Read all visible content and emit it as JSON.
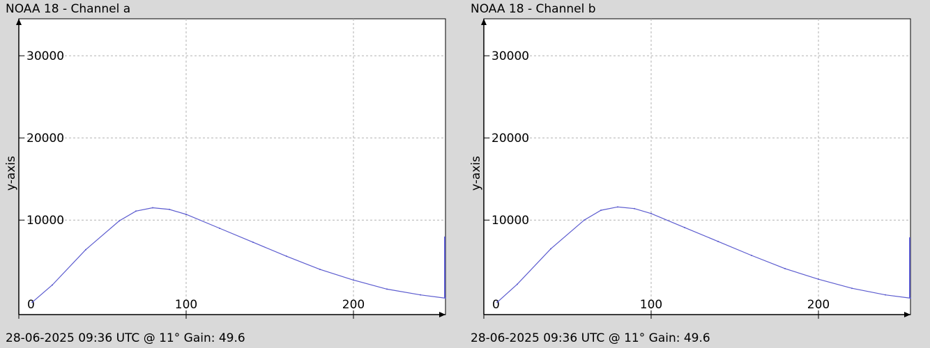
{
  "chart_data": [
    {
      "type": "line",
      "title": "NOAA 18 - Channel a",
      "footer": "28-06-2025 09:36 UTC @ 11° Gain: 49.6",
      "ylabel": "y-axis",
      "xlim": [
        0,
        255
      ],
      "ylim": [
        -1500,
        34500
      ],
      "xticks": [
        0,
        100,
        200
      ],
      "yticks": [
        10000,
        20000,
        30000
      ],
      "grid": true,
      "color": "#5b5bcf",
      "x": [
        8,
        20,
        40,
        60,
        70,
        80,
        90,
        100,
        120,
        140,
        160,
        180,
        200,
        220,
        240,
        255
      ],
      "values": [
        0,
        2100,
        6400,
        9900,
        11100,
        11500,
        11300,
        10700,
        9000,
        7300,
        5600,
        4000,
        2700,
        1600,
        900,
        500
      ],
      "end_spike": {
        "x": 255,
        "value": 8000
      }
    },
    {
      "type": "line",
      "title": "NOAA 18 - Channel b",
      "footer": "28-06-2025 09:36 UTC @ 11° Gain: 49.6",
      "ylabel": "y-axis",
      "xlim": [
        0,
        255
      ],
      "ylim": [
        -1500,
        34500
      ],
      "xticks": [
        0,
        100,
        200
      ],
      "yticks": [
        10000,
        20000,
        30000
      ],
      "grid": true,
      "color": "#5b5bcf",
      "x": [
        8,
        20,
        40,
        60,
        70,
        80,
        90,
        100,
        120,
        140,
        160,
        180,
        200,
        220,
        240,
        255
      ],
      "values": [
        0,
        2200,
        6500,
        10000,
        11200,
        11600,
        11400,
        10800,
        9100,
        7400,
        5700,
        4100,
        2800,
        1700,
        900,
        500
      ],
      "end_spike": {
        "x": 255,
        "value": 7900
      }
    }
  ]
}
